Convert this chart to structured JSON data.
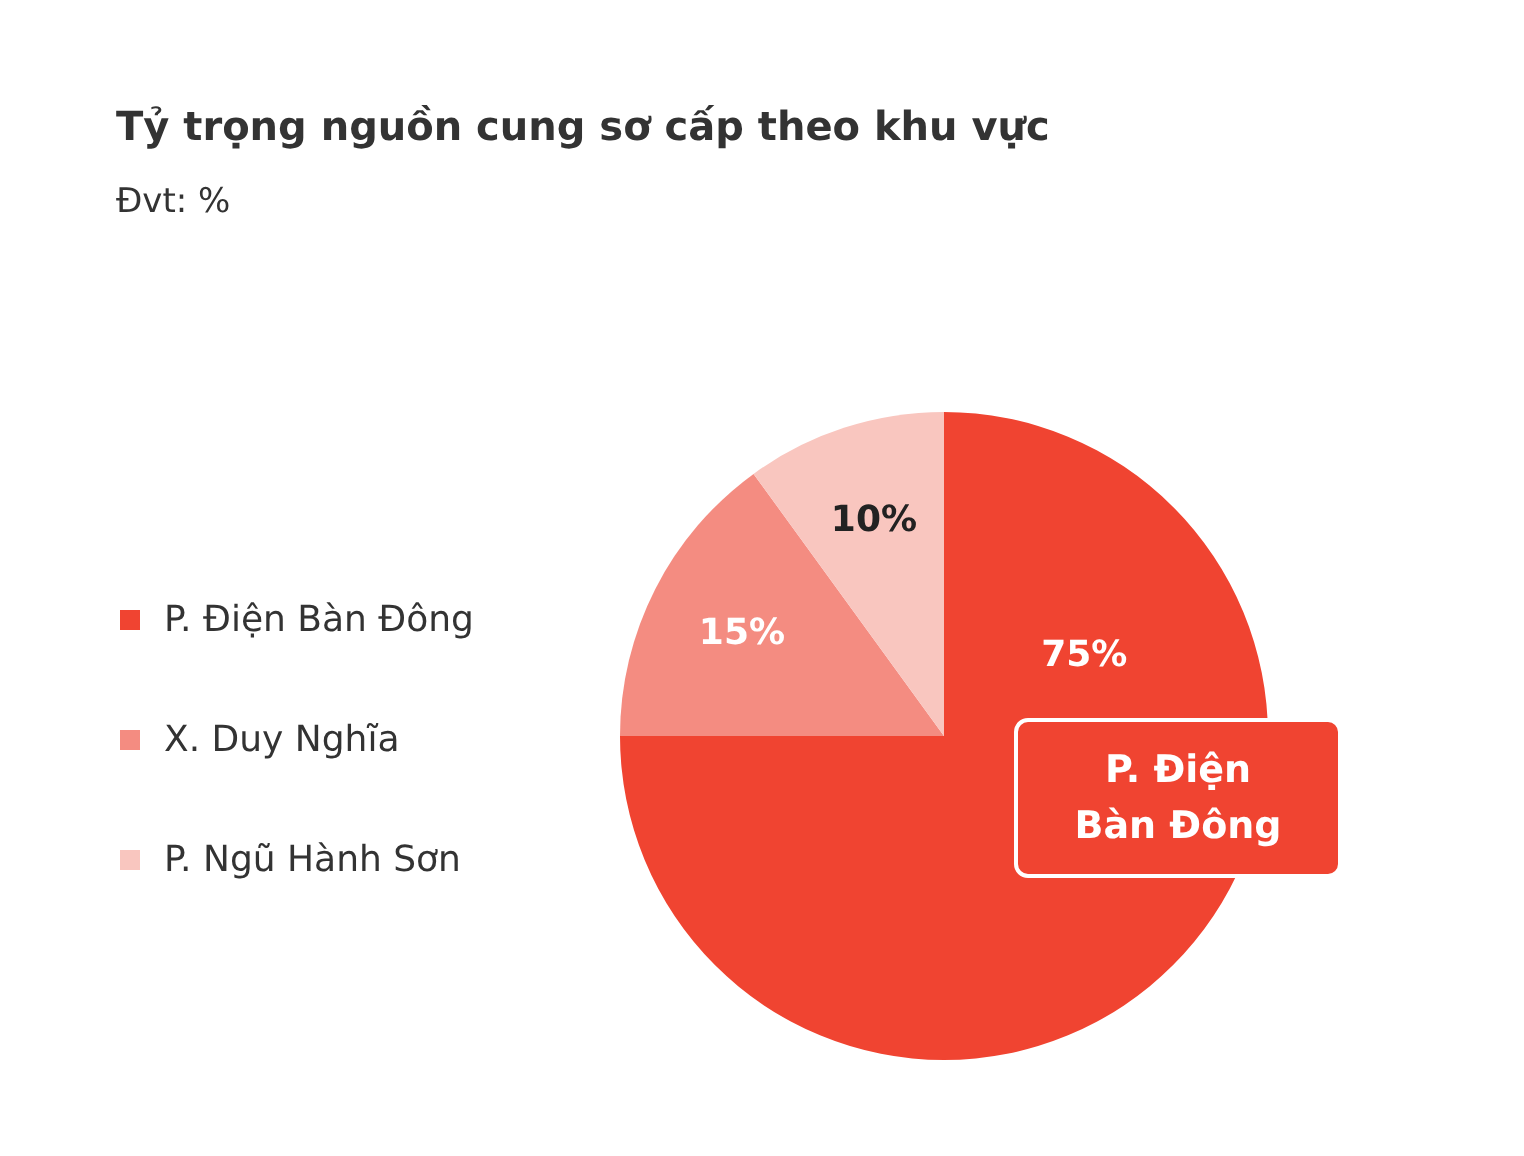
{
  "chart_data": {
    "type": "pie",
    "title": "Tỷ trọng nguồn cung sơ cấp theo khu vực",
    "subtitle": "Đvt: %",
    "categories": [
      "P. Điện Bàn Đông",
      "X. Duy Nghĩa",
      "P. Ngũ Hành Sơn"
    ],
    "values": [
      75,
      15,
      10
    ],
    "colors": [
      "#f04431",
      "#f48c81",
      "#f9c6bf"
    ],
    "value_labels": [
      "75%",
      "15%",
      "10%"
    ],
    "annotations": [
      "P. Điện Bàn Đông"
    ],
    "legend": "left"
  }
}
